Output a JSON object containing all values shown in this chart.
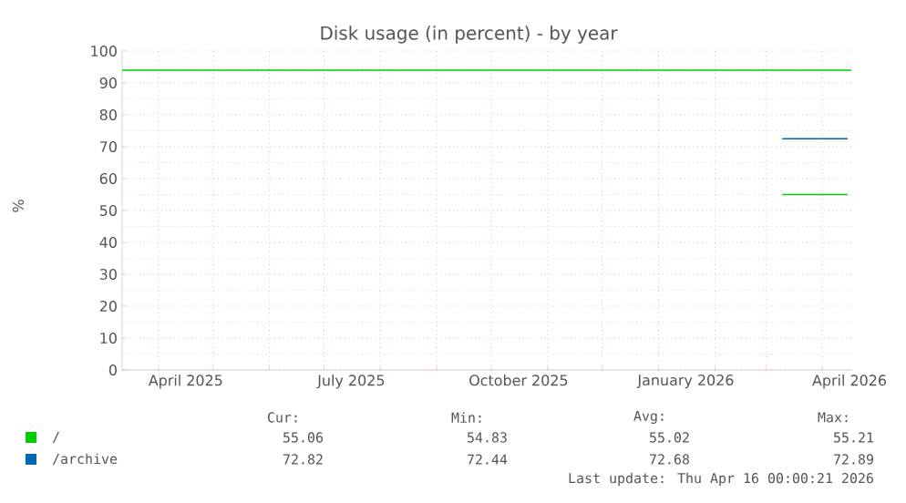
{
  "chart_data": {
    "type": "line",
    "title": "Disk usage (in percent) - by year",
    "ylabel": "%",
    "xlim": [
      "2025-03-12",
      "2026-04-17"
    ],
    "xticks": [
      {
        "value": "2025-04-01",
        "label": null
      },
      {
        "value": "2025-05-01",
        "label": null
      },
      {
        "value": "2025-06-01",
        "label": null
      },
      {
        "value": "2025-07-01",
        "label": null
      },
      {
        "value": "2025-08-01",
        "label": null
      },
      {
        "value": "2025-09-01",
        "label": null
      },
      {
        "value": "2025-10-01",
        "label": null
      },
      {
        "value": "2025-11-01",
        "label": null
      },
      {
        "value": "2025-12-01",
        "label": null
      },
      {
        "value": "2026-01-01",
        "label": null
      },
      {
        "value": "2026-02-01",
        "label": null
      },
      {
        "value": "2026-03-01",
        "label": null
      },
      {
        "value": "2026-04-01",
        "label": null
      },
      {
        "value": "2025-04-16",
        "label": "April 2025"
      },
      {
        "value": "2025-07-16",
        "label": "July 2025"
      },
      {
        "value": "2025-10-16",
        "label": "October 2025"
      },
      {
        "value": "2026-01-16",
        "label": "January 2026"
      },
      {
        "value": "2026-04-16",
        "label": "April 2026"
      }
    ],
    "ylim": [
      0,
      100
    ],
    "yticks": [
      0,
      10,
      20,
      30,
      40,
      50,
      60,
      70,
      80,
      90,
      100
    ],
    "grid": true,
    "legend": "bottom",
    "series": [
      {
        "name": "/",
        "color": "#00cc00",
        "x": [
          "2026-03-10",
          "2026-03-28",
          "2026-04-10",
          "2026-04-15"
        ],
        "values": [
          55,
          55,
          55,
          55
        ]
      },
      {
        "name": "/archive",
        "color": "#0066b3",
        "x": [
          "2026-03-10",
          "2026-03-28",
          "2026-04-10",
          "2026-04-15"
        ],
        "values": [
          72.5,
          72.5,
          72.5,
          72.5
        ]
      }
    ],
    "ref_lines": [
      {
        "axis": "y",
        "value": 94,
        "color": "#00cc00"
      }
    ],
    "annotations": [
      "Cur:",
      "Min:",
      "Avg:",
      "Max:",
      "55.06",
      "54.83",
      "55.02",
      "55.21",
      "72.82",
      "72.44",
      "72.68",
      "72.89",
      "Last update: Thu Apr 16 00:00:21 2026"
    ]
  }
}
